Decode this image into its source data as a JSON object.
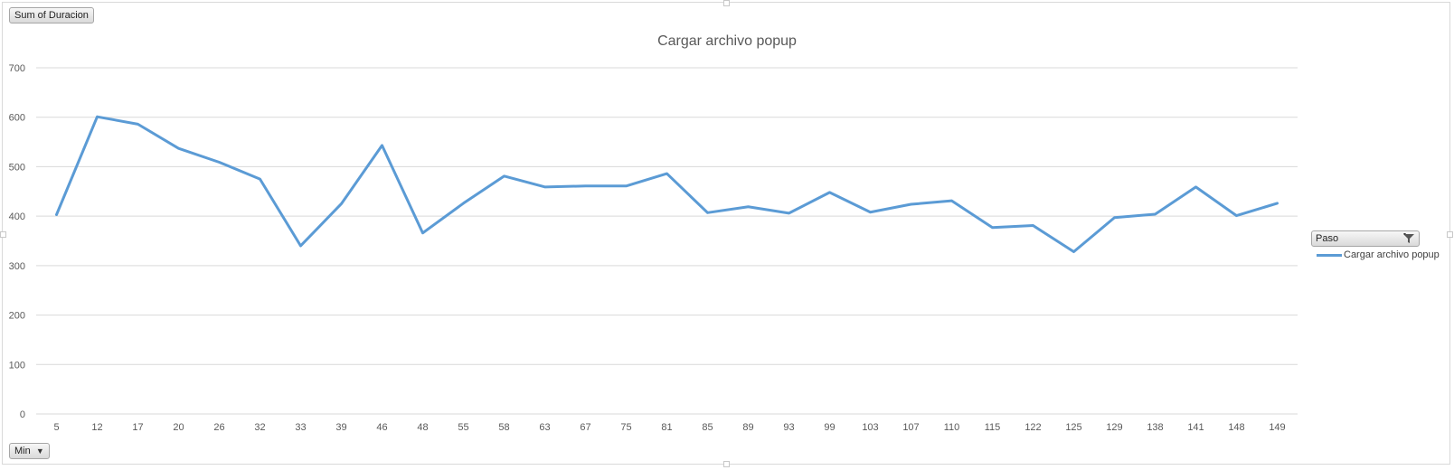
{
  "pivot_buttons": {
    "value_field": "Sum of Duracion",
    "axis_field": "Min",
    "legend_field": "Paso"
  },
  "colors": {
    "series": "#5b9bd5",
    "grid": "#d9d9d9",
    "text": "#595959"
  },
  "icons": {
    "dropdown": "dropdown-arrow-icon",
    "filter": "filter-icon"
  },
  "chart_data": {
    "type": "line",
    "title": "Cargar archivo popup",
    "xlabel": "",
    "ylabel": "",
    "ylim": [
      0,
      700
    ],
    "yticks": [
      0,
      100,
      200,
      300,
      400,
      500,
      600,
      700
    ],
    "grid": true,
    "legend_position": "right",
    "categories": [
      "5",
      "12",
      "17",
      "20",
      "26",
      "32",
      "33",
      "39",
      "46",
      "48",
      "55",
      "58",
      "63",
      "67",
      "75",
      "81",
      "85",
      "89",
      "93",
      "99",
      "103",
      "107",
      "110",
      "115",
      "122",
      "125",
      "129",
      "138",
      "141",
      "148",
      "149"
    ],
    "series": [
      {
        "name": "Cargar archivo popup",
        "values": [
          403,
          601,
          586,
          537,
          509,
          475,
          340,
          425,
          543,
          366,
          426,
          481,
          459,
          461,
          461,
          486,
          407,
          419,
          406,
          448,
          408,
          424,
          431,
          377,
          381,
          328,
          397,
          404,
          459,
          401,
          426
        ]
      }
    ]
  }
}
